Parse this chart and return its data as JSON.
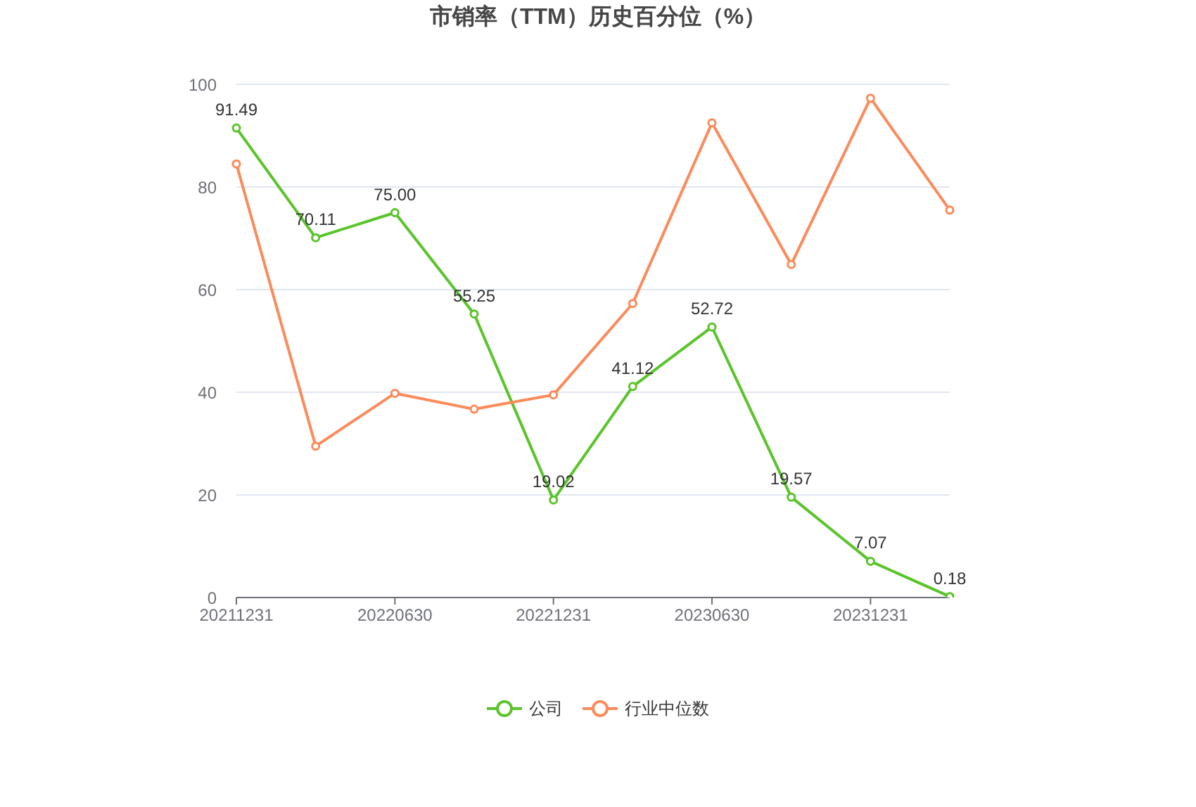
{
  "chart_data": {
    "type": "line",
    "title": "市销率（TTM）历史百分位（%）",
    "categories": [
      "20211231",
      null,
      "20220630",
      null,
      "20221231",
      null,
      "20230630",
      null,
      "20231231",
      null
    ],
    "series": [
      {
        "name": "公司",
        "color": "#5ac42a",
        "values": [
          91.49,
          70.11,
          75.0,
          55.25,
          19.02,
          41.12,
          52.72,
          19.57,
          7.07,
          0.18
        ],
        "value_labels": [
          "91.49",
          "70.11",
          "75.00",
          "55.25",
          "19.02",
          "41.12",
          "52.72",
          "19.57",
          "7.07",
          "0.18"
        ]
      },
      {
        "name": "行业中位数",
        "color": "#fc8a5a",
        "values": [
          84.5,
          29.5,
          39.8,
          36.7,
          39.5,
          57.3,
          92.5,
          64.9,
          97.3,
          75.5
        ]
      }
    ],
    "ylim": [
      0,
      100
    ],
    "yticks": [
      0,
      20,
      40,
      60,
      80,
      100
    ],
    "grid": "y",
    "legend": "bottom",
    "marker": "circle",
    "line_style": "solid"
  }
}
